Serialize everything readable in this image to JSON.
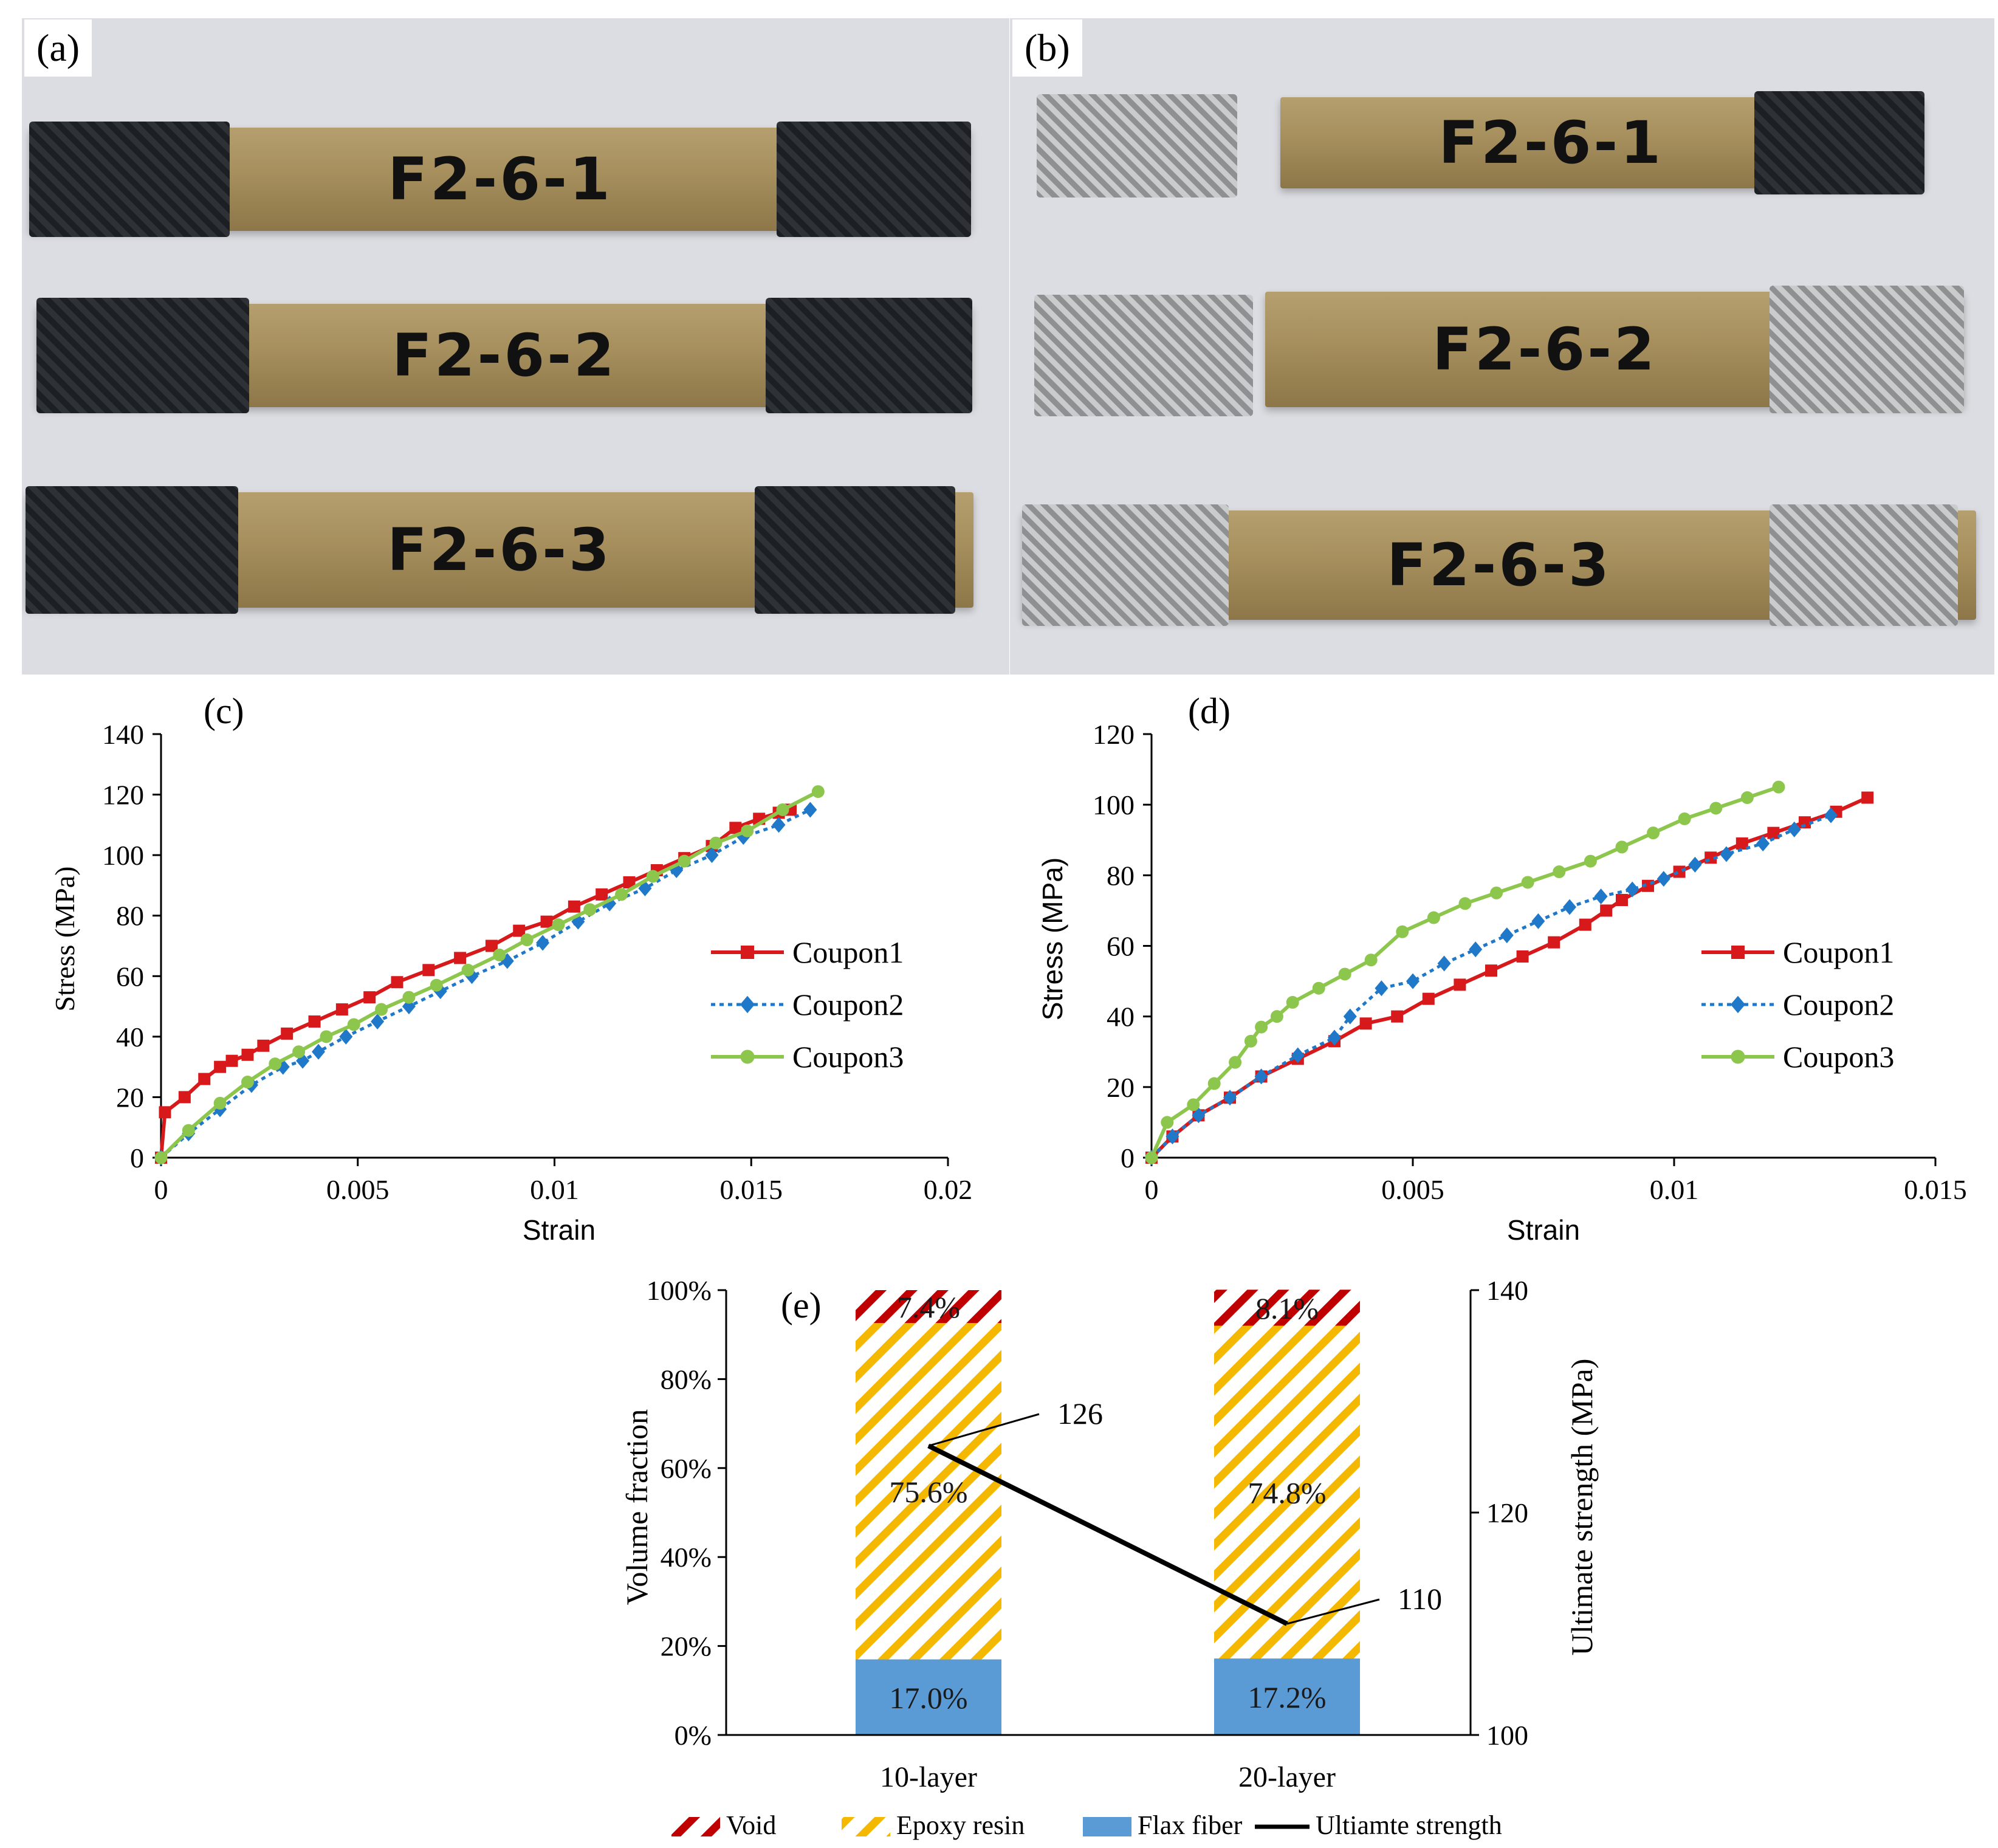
{
  "photos": {
    "a": {
      "label": "(a)",
      "specimens": [
        "F2-6-1",
        "F2-6-2",
        "F2-6-3"
      ]
    },
    "b": {
      "label": "(b)",
      "specimens": [
        "F2-6-1",
        "F2-6-2",
        "F2-6-3"
      ]
    }
  },
  "chart_data": [
    {
      "id": "c",
      "type": "line",
      "panel_label": "(c)",
      "xlabel": "Strain",
      "ylabel": "Stress (MPa)",
      "xlim": [
        0,
        0.02
      ],
      "ylim": [
        0,
        140
      ],
      "xticks": [
        0,
        0.005,
        0.01,
        0.015,
        0.02
      ],
      "xtick_labels": [
        "0",
        "0.005",
        "0.01",
        "0.015",
        "0.02"
      ],
      "yticks": [
        0,
        20,
        40,
        60,
        80,
        100,
        120,
        140
      ],
      "legend_position": "right",
      "series": [
        {
          "name": "Coupon1",
          "color": "#d7191c",
          "marker": "square",
          "dash": "solid",
          "x": [
            0,
            0.0001,
            0.0006,
            0.0011,
            0.0015,
            0.0018,
            0.0022,
            0.0026,
            0.0032,
            0.0039,
            0.0046,
            0.0053,
            0.006,
            0.0068,
            0.0076,
            0.0084,
            0.0091,
            0.0098,
            0.0105,
            0.0112,
            0.0119,
            0.0126,
            0.0133,
            0.014,
            0.0146,
            0.0152,
            0.0157,
            0.016
          ],
          "y": [
            0,
            15,
            20,
            26,
            30,
            32,
            34,
            37,
            41,
            45,
            49,
            53,
            58,
            62,
            66,
            70,
            75,
            78,
            83,
            87,
            91,
            95,
            99,
            103,
            109,
            112,
            114,
            115
          ]
        },
        {
          "name": "Coupon2",
          "color": "#1f78c8",
          "marker": "diamond",
          "dash": "dotted",
          "x": [
            0,
            0.0007,
            0.0015,
            0.0023,
            0.0031,
            0.0036,
            0.004,
            0.0047,
            0.0055,
            0.0063,
            0.0071,
            0.0079,
            0.0088,
            0.0097,
            0.0106,
            0.0114,
            0.0123,
            0.0131,
            0.014,
            0.0148,
            0.0157,
            0.0165
          ],
          "y": [
            0,
            8,
            16,
            24,
            30,
            32,
            35,
            40,
            45,
            50,
            55,
            60,
            65,
            71,
            78,
            84,
            89,
            95,
            100,
            106,
            110,
            115
          ]
        },
        {
          "name": "Coupon3",
          "color": "#8dc64d",
          "marker": "circle",
          "dash": "solid",
          "x": [
            0,
            0.0007,
            0.0015,
            0.0022,
            0.0029,
            0.0035,
            0.0042,
            0.0049,
            0.0056,
            0.0063,
            0.007,
            0.0078,
            0.0086,
            0.0093,
            0.0101,
            0.0109,
            0.0117,
            0.0125,
            0.0133,
            0.0141,
            0.0149,
            0.0158,
            0.0167
          ],
          "y": [
            0,
            9,
            18,
            25,
            31,
            35,
            40,
            44,
            49,
            53,
            57,
            62,
            67,
            72,
            77,
            82,
            87,
            93,
            98,
            104,
            108,
            115,
            121
          ]
        }
      ]
    },
    {
      "id": "d",
      "type": "line",
      "panel_label": "(d)",
      "xlabel": "Strain",
      "ylabel": "Stress (MPa)",
      "xlim": [
        0,
        0.015
      ],
      "ylim": [
        0,
        120
      ],
      "xticks": [
        0,
        0.005,
        0.01,
        0.015
      ],
      "xtick_labels": [
        "0",
        "0.005",
        "0.01",
        "0.015"
      ],
      "yticks": [
        0,
        20,
        40,
        60,
        80,
        100,
        120
      ],
      "legend_position": "right",
      "series": [
        {
          "name": "Coupon1",
          "color": "#d7191c",
          "marker": "square",
          "dash": "solid",
          "x": [
            0,
            0.0004,
            0.0009,
            0.0015,
            0.0021,
            0.0028,
            0.0035,
            0.0041,
            0.0047,
            0.0053,
            0.0059,
            0.0065,
            0.0071,
            0.0077,
            0.0083,
            0.0087,
            0.009,
            0.0095,
            0.0101,
            0.0107,
            0.0113,
            0.0119,
            0.0125,
            0.0131,
            0.0137
          ],
          "y": [
            0,
            6,
            12,
            17,
            23,
            28,
            33,
            38,
            40,
            45,
            49,
            53,
            57,
            61,
            66,
            70,
            73,
            77,
            81,
            85,
            89,
            92,
            95,
            98,
            102
          ]
        },
        {
          "name": "Coupon2",
          "color": "#1f78c8",
          "marker": "diamond",
          "dash": "dotted",
          "x": [
            0,
            0.0004,
            0.0009,
            0.0015,
            0.0021,
            0.0028,
            0.0035,
            0.0038,
            0.0044,
            0.005,
            0.0056,
            0.0062,
            0.0068,
            0.0074,
            0.008,
            0.0086,
            0.0092,
            0.0098,
            0.0104,
            0.011,
            0.0117,
            0.0123,
            0.013
          ],
          "y": [
            0,
            6,
            12,
            17,
            23,
            29,
            34,
            40,
            48,
            50,
            55,
            59,
            63,
            67,
            71,
            74,
            76,
            79,
            83,
            86,
            89,
            93,
            97
          ]
        },
        {
          "name": "Coupon3",
          "color": "#8dc64d",
          "marker": "circle",
          "dash": "solid",
          "x": [
            0,
            0.0003,
            0.0008,
            0.0012,
            0.0016,
            0.0019,
            0.0021,
            0.0024,
            0.0027,
            0.0032,
            0.0037,
            0.0042,
            0.0048,
            0.0054,
            0.006,
            0.0066,
            0.0072,
            0.0078,
            0.0084,
            0.009,
            0.0096,
            0.0102,
            0.0108,
            0.0114,
            0.012
          ],
          "y": [
            0,
            10,
            15,
            21,
            27,
            33,
            37,
            40,
            44,
            48,
            52,
            56,
            64,
            68,
            72,
            75,
            78,
            81,
            84,
            88,
            92,
            96,
            99,
            102,
            105
          ]
        }
      ]
    },
    {
      "id": "e",
      "type": "bar",
      "stacked": true,
      "panel_label": "(e)",
      "categories": [
        "10-layer",
        "20-layer"
      ],
      "ylabel": "Volume fraction",
      "y2label": "Ultimate strength (MPa)",
      "ylim": [
        0,
        100
      ],
      "yticks": [
        0,
        20,
        40,
        60,
        80,
        100
      ],
      "ytick_labels": [
        "0%",
        "20%",
        "40%",
        "60%",
        "80%",
        "100%"
      ],
      "y2lim": [
        100,
        140
      ],
      "y2ticks": [
        100,
        120,
        140
      ],
      "series": [
        {
          "name": "Flax fiber",
          "color": "#5b9bd5",
          "pattern": "solid",
          "values": [
            17.0,
            17.2
          ],
          "labels": [
            "17.0%",
            "17.2%"
          ]
        },
        {
          "name": "Epoxy resin",
          "color": "#f5b800",
          "pattern": "hatch",
          "values": [
            75.6,
            74.8
          ],
          "labels": [
            "75.6%",
            "74.8%"
          ]
        },
        {
          "name": "Void",
          "color": "#c00000",
          "pattern": "hatch",
          "values": [
            7.4,
            8.1
          ],
          "labels": [
            "7.4%",
            "8.1%"
          ]
        }
      ],
      "line_series": {
        "name": "Ultiamte strength",
        "color": "#000000",
        "axis": "right",
        "values": [
          126,
          110
        ],
        "labels": [
          "126",
          "110"
        ]
      },
      "legend_position": "bottom",
      "legend_order": [
        "Void",
        "Epoxy resin",
        "Flax fiber",
        "Ultiamte strength"
      ]
    }
  ]
}
